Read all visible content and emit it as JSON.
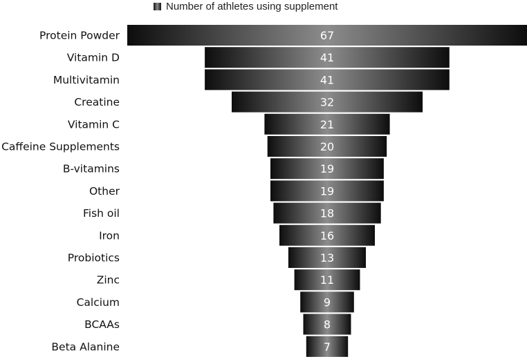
{
  "chart_data": {
    "type": "bar",
    "orientation": "horizontal-centered-funnel",
    "legend": {
      "label": "Number of athletes using supplement",
      "position": "top"
    },
    "series": [
      {
        "name": "Number of athletes using supplement",
        "values": [
          67,
          41,
          41,
          32,
          21,
          20,
          19,
          19,
          18,
          16,
          13,
          11,
          9,
          8,
          7
        ]
      }
    ],
    "categories": [
      "Protein Powder",
      "Vitamin D",
      "Multivitamin",
      "Creatine",
      "Vitamin C",
      "Caffeine Supplements",
      "B-vitamins",
      "Other",
      "Fish oil",
      "Iron",
      "Probiotics",
      "Zinc",
      "Calcium",
      "BCAAs",
      "Beta Alanine"
    ],
    "xlim": [
      0,
      67
    ],
    "grid": false,
    "colors": {
      "bar_dark": "#0d0d0d",
      "bar_mid": "#8c8c8c",
      "value_text": "#ffffff",
      "label_text": "#111111"
    }
  }
}
